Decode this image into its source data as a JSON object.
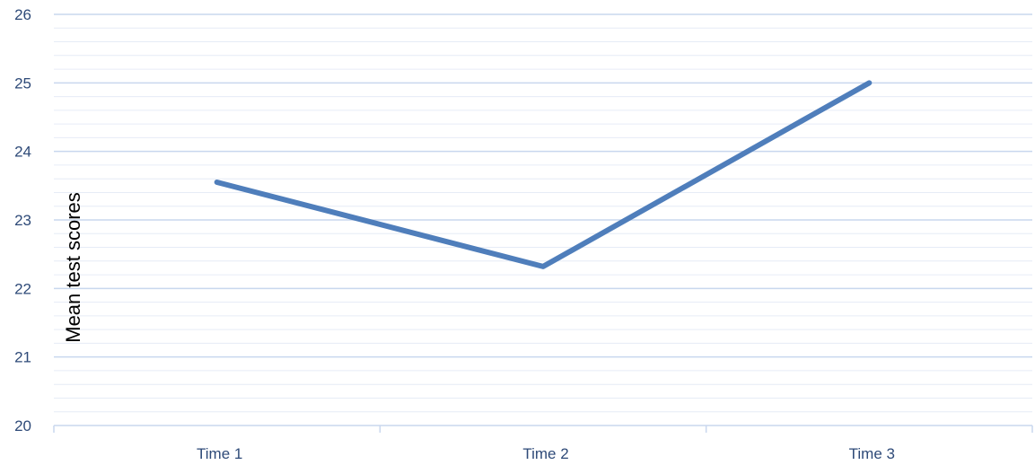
{
  "colors": {
    "series": "#4f7ebb",
    "major_grid": "#c9d7ee",
    "minor_grid": "#e6ecf6",
    "axis_line": "#c9d7ee",
    "tick_text": "#2e4a78",
    "axis_title": "#000000"
  },
  "chart_data": {
    "type": "line",
    "categories": [
      "Time 1",
      "Time 2",
      "Time 3"
    ],
    "series": [
      {
        "values": [
          23.55,
          22.32,
          25.0
        ]
      }
    ],
    "ylabel": "Mean test scores",
    "ylim": [
      20,
      26
    ],
    "y_ticks": [
      "20",
      "21",
      "22",
      "23",
      "24",
      "25",
      "26"
    ],
    "y_minor_step": 0.2,
    "grid": true,
    "legend": "none"
  }
}
